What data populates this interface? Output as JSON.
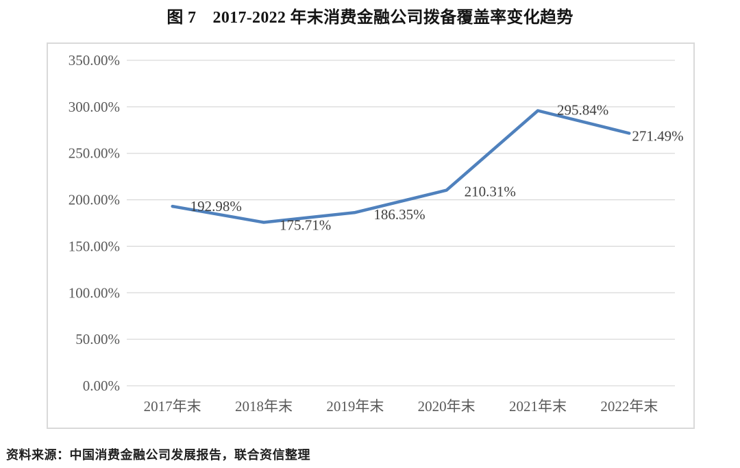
{
  "title": "图 7　2017-2022 年末消费金融公司拨备覆盖率变化趋势",
  "source": "资料来源：中国消费金融公司发展报告，联合资信整理",
  "chart_data": {
    "type": "line",
    "title": "图 7　2017-2022 年末消费金融公司拨备覆盖率变化趋势",
    "categories": [
      "2017年末",
      "2018年末",
      "2019年末",
      "2020年末",
      "2021年末",
      "2022年末"
    ],
    "values": [
      192.98,
      175.71,
      186.35,
      210.31,
      295.84,
      271.49
    ],
    "data_labels": [
      "192.98%",
      "175.71%",
      "186.35%",
      "210.31%",
      "295.84%",
      "271.49%"
    ],
    "y_ticks": [
      "350.00%",
      "300.00%",
      "250.00%",
      "200.00%",
      "150.00%",
      "100.00%",
      "50.00%",
      "0.00%"
    ],
    "ylim": [
      0,
      350
    ],
    "y_tick_step": 50,
    "xlabel": "",
    "ylabel": "",
    "grid": "horizontal",
    "legend": "none",
    "line_color": "#4f81bd",
    "grid_color": "#d9d9d9",
    "frame_color": "#d9d9d9",
    "axis_label_color": "#595959",
    "data_label_color": "#3f3f3f"
  }
}
